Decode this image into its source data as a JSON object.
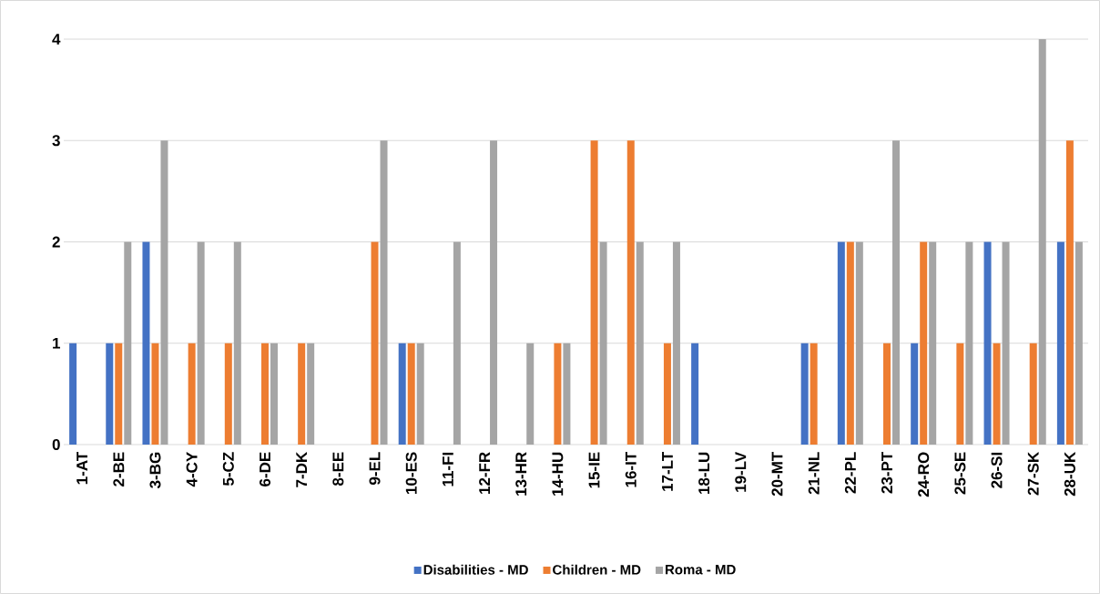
{
  "chart_data": {
    "type": "bar",
    "categories": [
      "1-AT",
      "2-BE",
      "3-BG",
      "4-CY",
      "5-CZ",
      "6-DE",
      "7-DK",
      "8-EE",
      "9-EL",
      "10-ES",
      "11-FI",
      "12-FR",
      "13-HR",
      "14-HU",
      "15-IE",
      "16-IT",
      "17-LT",
      "18-LU",
      "19-LV",
      "20-MT",
      "21-NL",
      "22-PL",
      "23-PT",
      "24-RO",
      "25-SE",
      "26-SI",
      "27-SK",
      "28-UK"
    ],
    "series": [
      {
        "name": "Disabilities - MD",
        "color": "#4472c4",
        "values": [
          1,
          1,
          2,
          0,
          0,
          0,
          0,
          0,
          0,
          1,
          0,
          0,
          0,
          0,
          0,
          0,
          0,
          1,
          0,
          0,
          1,
          2,
          0,
          1,
          0,
          2,
          0,
          2
        ]
      },
      {
        "name": "Children - MD",
        "color": "#ed7d31",
        "values": [
          0,
          1,
          1,
          1,
          1,
          1,
          1,
          0,
          2,
          1,
          0,
          0,
          0,
          1,
          3,
          3,
          1,
          0,
          0,
          0,
          1,
          2,
          1,
          2,
          1,
          1,
          1,
          3
        ]
      },
      {
        "name": "Roma - MD",
        "color": "#a5a5a5",
        "values": [
          0,
          2,
          3,
          2,
          2,
          1,
          1,
          0,
          3,
          1,
          2,
          3,
          1,
          1,
          2,
          2,
          2,
          0,
          0,
          0,
          0,
          2,
          3,
          2,
          2,
          2,
          4,
          2
        ]
      }
    ],
    "ylim": [
      0,
      4
    ],
    "yticks": [
      0,
      1,
      2,
      3,
      4
    ],
    "grid": "y",
    "legend": "bottom"
  }
}
